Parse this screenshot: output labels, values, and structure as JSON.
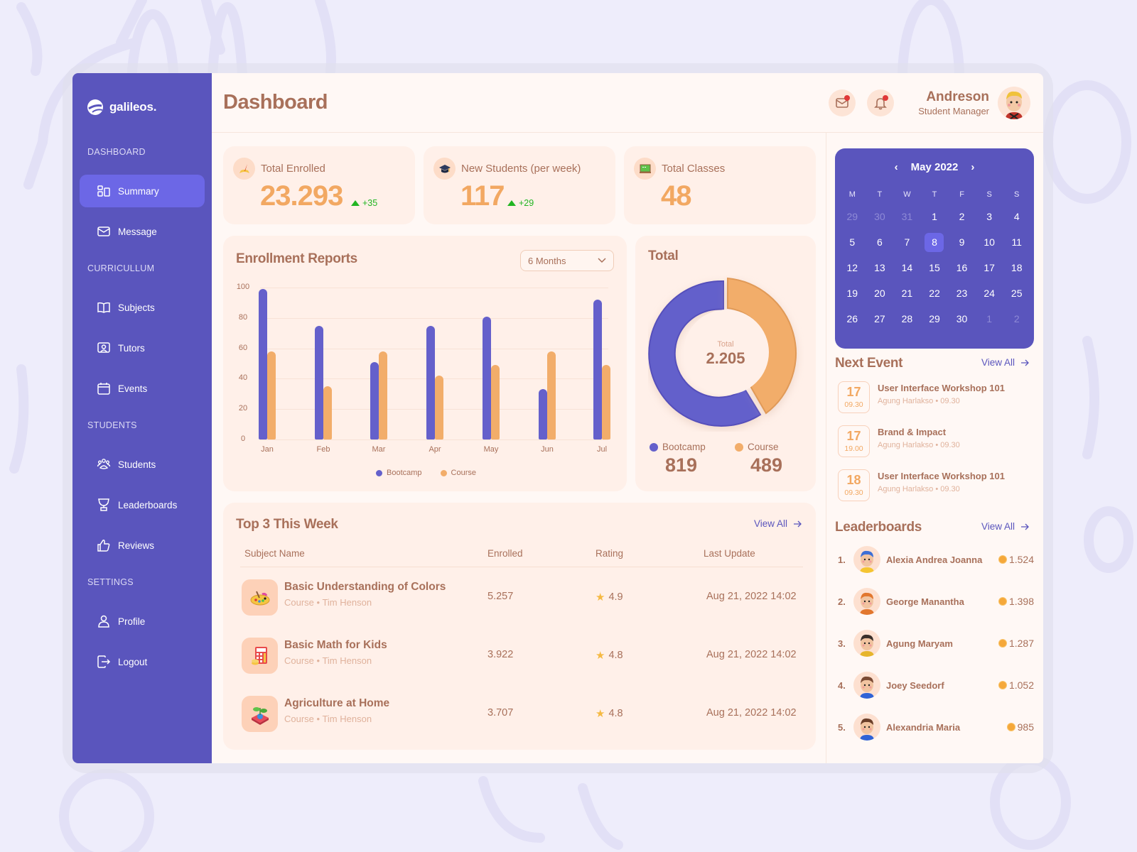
{
  "brand": {
    "name": "galileos."
  },
  "sidebar": {
    "sections": [
      {
        "label": "DASHBOARD"
      },
      {
        "label": "CURRICULLUM"
      },
      {
        "label": "STUDENTS"
      },
      {
        "label": "SETTINGS"
      }
    ],
    "items": [
      {
        "label": "Summary",
        "icon": "summary-icon",
        "active": true
      },
      {
        "label": "Message",
        "icon": "mail-icon"
      },
      {
        "label": "Subjects",
        "icon": "book-icon"
      },
      {
        "label": "Tutors",
        "icon": "tutor-icon"
      },
      {
        "label": "Events",
        "icon": "calendar-icon"
      },
      {
        "label": "Students",
        "icon": "group-icon"
      },
      {
        "label": "Leaderboards",
        "icon": "trophy-icon"
      },
      {
        "label": "Reviews",
        "icon": "thumbs-up-icon"
      },
      {
        "label": "Profile",
        "icon": "user-icon"
      },
      {
        "label": "Logout",
        "icon": "logout-icon"
      }
    ]
  },
  "header": {
    "title": "Dashboard",
    "user": {
      "name": "Andreson",
      "role": "Student Manager"
    }
  },
  "stats": [
    {
      "label": "Total Enrolled",
      "value": "23.293",
      "delta": "+35",
      "icon": "book-pen-icon"
    },
    {
      "label": "New Students (per week)",
      "value": "117",
      "delta": "+29",
      "icon": "graduation-cap-icon"
    },
    {
      "label": "Total Classes",
      "value": "48",
      "icon": "blackboard-icon"
    }
  ],
  "enrollment": {
    "title": "Enrollment Reports",
    "period": "6 Months",
    "legend": {
      "bootcamp": "Bootcamp",
      "course": "Course"
    }
  },
  "total": {
    "title": "Total",
    "center_label": "Total",
    "center_value": "2.205",
    "bootcamp_label": "Bootcamp",
    "bootcamp_value": "819",
    "course_label": "Course",
    "course_value": "489"
  },
  "chart_data": [
    {
      "type": "bar",
      "title": "Enrollment Reports",
      "categories": [
        "Jan",
        "Feb",
        "Mar",
        "Apr",
        "May",
        "Jun",
        "Jul"
      ],
      "series": [
        {
          "name": "Bootcamp",
          "color": "#6460cb",
          "values": [
            99,
            75,
            51,
            75,
            81,
            33,
            92
          ]
        },
        {
          "name": "Course",
          "color": "#f2ad6a",
          "values": [
            58,
            35,
            58,
            42,
            49,
            58,
            49
          ]
        }
      ],
      "yticks": [
        0,
        20,
        40,
        60,
        80,
        100
      ],
      "ylim": [
        0,
        100
      ],
      "grid": true,
      "legend_position": "bottom"
    },
    {
      "type": "pie",
      "title": "Total",
      "donut": true,
      "center_text": "Total 2.205",
      "labels": [
        "Bootcamp",
        "Course"
      ],
      "values": [
        819,
        489
      ],
      "colors": [
        "#6460cb",
        "#f2ad6a"
      ]
    }
  ],
  "top3": {
    "title": "Top 3 This Week",
    "view_all": "View All",
    "columns": [
      "Subject Name",
      "Enrolled",
      "Rating",
      "Last Update"
    ],
    "rows": [
      {
        "title": "Basic Understanding of Colors",
        "sub": "Course • Tim Henson",
        "enrolled": "5.257",
        "rating": "4.9",
        "updated": "Aug 21, 2022 14:02",
        "icon": "palette-icon"
      },
      {
        "title": "Basic Math for Kids",
        "sub": "Course • Tim Henson",
        "enrolled": "3.922",
        "rating": "4.8",
        "updated": "Aug 21, 2022 14:02",
        "icon": "calculator-icon"
      },
      {
        "title": "Agriculture at Home",
        "sub": "Course • Tim Henson",
        "enrolled": "3.707",
        "rating": "4.8",
        "updated": "Aug 21, 2022 14:02",
        "icon": "plant-book-icon"
      }
    ]
  },
  "calendar": {
    "month": "May 2022",
    "dow": [
      "M",
      "T",
      "W",
      "T",
      "F",
      "S",
      "S"
    ],
    "days": [
      {
        "d": "29",
        "m": true
      },
      {
        "d": "30",
        "m": true
      },
      {
        "d": "31",
        "m": true
      },
      {
        "d": "1"
      },
      {
        "d": "2"
      },
      {
        "d": "3"
      },
      {
        "d": "4"
      },
      {
        "d": "5"
      },
      {
        "d": "6"
      },
      {
        "d": "7"
      },
      {
        "d": "8",
        "sel": true
      },
      {
        "d": "9"
      },
      {
        "d": "10"
      },
      {
        "d": "11"
      },
      {
        "d": "12"
      },
      {
        "d": "13"
      },
      {
        "d": "14"
      },
      {
        "d": "15"
      },
      {
        "d": "16"
      },
      {
        "d": "17"
      },
      {
        "d": "18"
      },
      {
        "d": "19"
      },
      {
        "d": "20"
      },
      {
        "d": "21"
      },
      {
        "d": "22"
      },
      {
        "d": "23"
      },
      {
        "d": "24"
      },
      {
        "d": "25"
      },
      {
        "d": "26"
      },
      {
        "d": "27"
      },
      {
        "d": "28"
      },
      {
        "d": "29"
      },
      {
        "d": "30"
      },
      {
        "d": "1",
        "m": true
      },
      {
        "d": "2",
        "m": true
      }
    ]
  },
  "events": {
    "title": "Next Event",
    "view_all": "View All",
    "items": [
      {
        "day": "17",
        "time": "09.30",
        "title": "User Interface Workshop 101",
        "sub": "Agung Harlakso • 09.30"
      },
      {
        "day": "17",
        "time": "19.00",
        "title": "Brand & Impact",
        "sub": "Agung Harlakso • 09.30"
      },
      {
        "day": "18",
        "time": "09.30",
        "title": "User Interface Workshop 101",
        "sub": "Agung Harlakso • 09.30"
      }
    ]
  },
  "leaderboards": {
    "title": "Leaderboards",
    "view_all": "View All",
    "items": [
      {
        "rank": "1.",
        "name": "Alexia Andrea Joanna",
        "score": "1.524",
        "hair": "#3d6fd6",
        "shirt": "#f5c531"
      },
      {
        "rank": "2.",
        "name": "George Manantha",
        "score": "1.398",
        "hair": "#e2772e",
        "shirt": "#e2772e"
      },
      {
        "rank": "3.",
        "name": "Agung Maryam",
        "score": "1.287",
        "hair": "#3a2f2a",
        "shirt": "#e6b52c"
      },
      {
        "rank": "4.",
        "name": "Joey Seedorf",
        "score": "1.052",
        "hair": "#7a4a33",
        "shirt": "#2f63d6"
      },
      {
        "rank": "5.",
        "name": "Alexandria Maria",
        "score": "985",
        "hair": "#6b3f2a",
        "shirt": "#2f63d6"
      }
    ]
  },
  "colors": {
    "primary": "#5a55bd",
    "accent": "#f2a862",
    "text": "#a8705a",
    "success": "#22b522",
    "card": "#fff0e9"
  }
}
